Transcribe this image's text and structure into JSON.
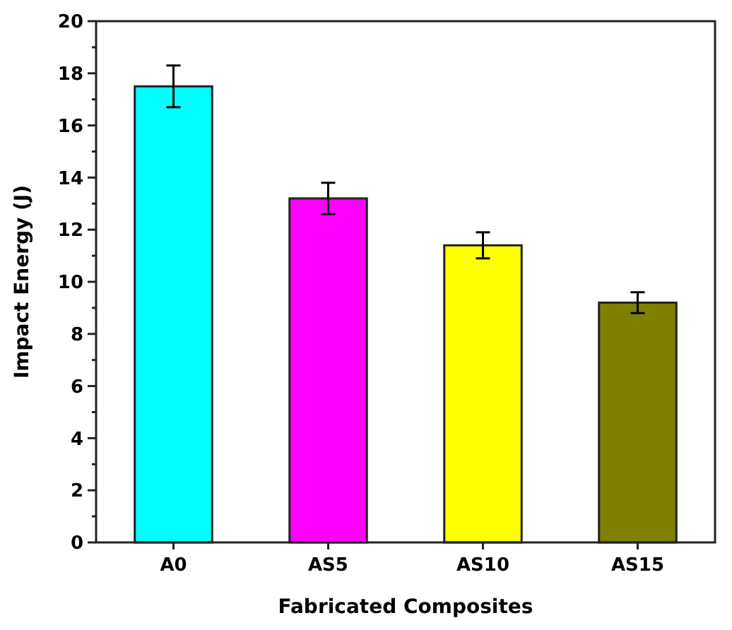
{
  "chart_data": {
    "type": "bar",
    "xlabel": "Fabricated Composites",
    "ylabel": "Impact Energy (J)",
    "categories": [
      "A0",
      "AS5",
      "AS10",
      "AS15"
    ],
    "values": [
      17.5,
      13.2,
      11.4,
      9.2
    ],
    "errors": [
      0.8,
      0.6,
      0.5,
      0.4
    ],
    "colors": [
      "#00ffff",
      "#ff00ff",
      "#ffff00",
      "#808000"
    ],
    "ylim": [
      0,
      20
    ],
    "yticks": [
      0,
      2,
      4,
      6,
      8,
      10,
      12,
      14,
      16,
      18,
      20
    ],
    "grid": false
  }
}
